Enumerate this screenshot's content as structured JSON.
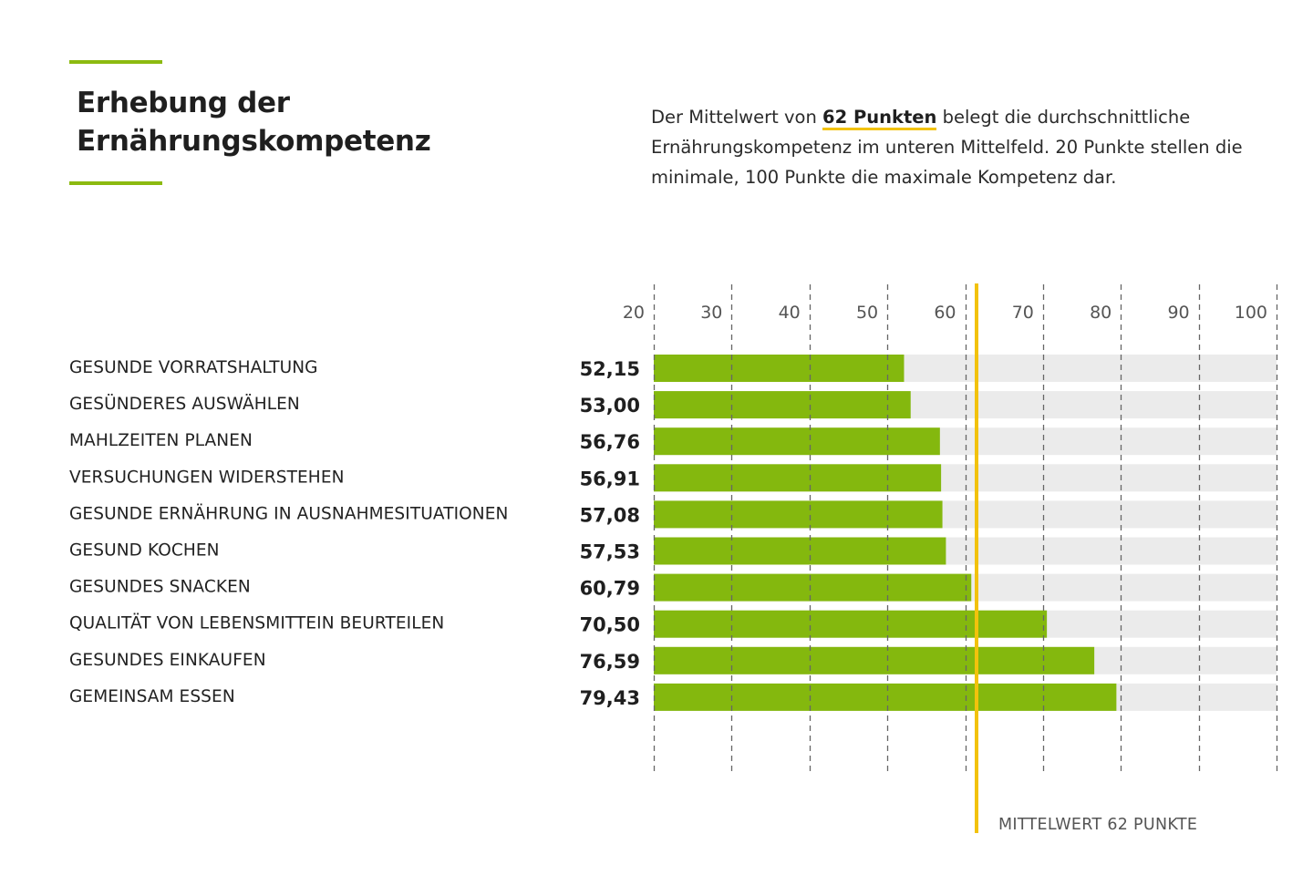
{
  "header": {
    "title_line1": "Erhebung der",
    "title_line2": "Ernährungskompetenz"
  },
  "description": {
    "before": "Der Mittelwert von ",
    "highlight": "62 Punkten",
    "after": " belegt die durchschnittliche Ernährungskompetenz im unteren Mittelfeld. 20 Punkte stellen die minimale, 100 Punkte die maximale Kompetenz dar."
  },
  "colors": {
    "accent": "#8cba10",
    "bar": "#84b80e",
    "track": "#ebebeb",
    "mean_line": "#f2c20c",
    "grid": "#666666"
  },
  "chart_data": {
    "type": "bar",
    "orientation": "horizontal",
    "title": "Erhebung der Ernährungskompetenz",
    "xlim": [
      20,
      100
    ],
    "ticks": [
      20,
      30,
      40,
      50,
      60,
      70,
      80,
      90,
      100
    ],
    "tick_labels": [
      "20",
      "30",
      "40",
      "50",
      "60",
      "70",
      "80",
      "90",
      "100"
    ],
    "categories": [
      "GESUNDE VORRATSHALTUNG",
      "GESÜNDERES AUSWÄHLEN",
      "MAHLZEITEN PLANEN",
      "VERSUCHUNGEN WIDERSTEHEN",
      "GESUNDE ERNÄHRUNG IN AUSNAHMESITUATIONEN",
      "GESUND KOCHEN",
      "GESUNDES SNACKEN",
      "QUALITÄT VON LEBENSMITTEIN BEURTEILEN",
      "GESUNDES EINKAUFEN",
      "GEMEINSAM ESSEN"
    ],
    "values": [
      52.15,
      53.0,
      56.76,
      56.91,
      57.08,
      57.53,
      60.79,
      70.5,
      76.59,
      79.43
    ],
    "value_labels": [
      "52,15",
      "53,00",
      "56,76",
      "56,91",
      "57,08",
      "57,53",
      "60,79",
      "70,50",
      "76,59",
      "79,43"
    ],
    "mean": 62,
    "mean_label": "MITTELWERT 62 PUNKTE",
    "grid": true,
    "legend": "none"
  }
}
